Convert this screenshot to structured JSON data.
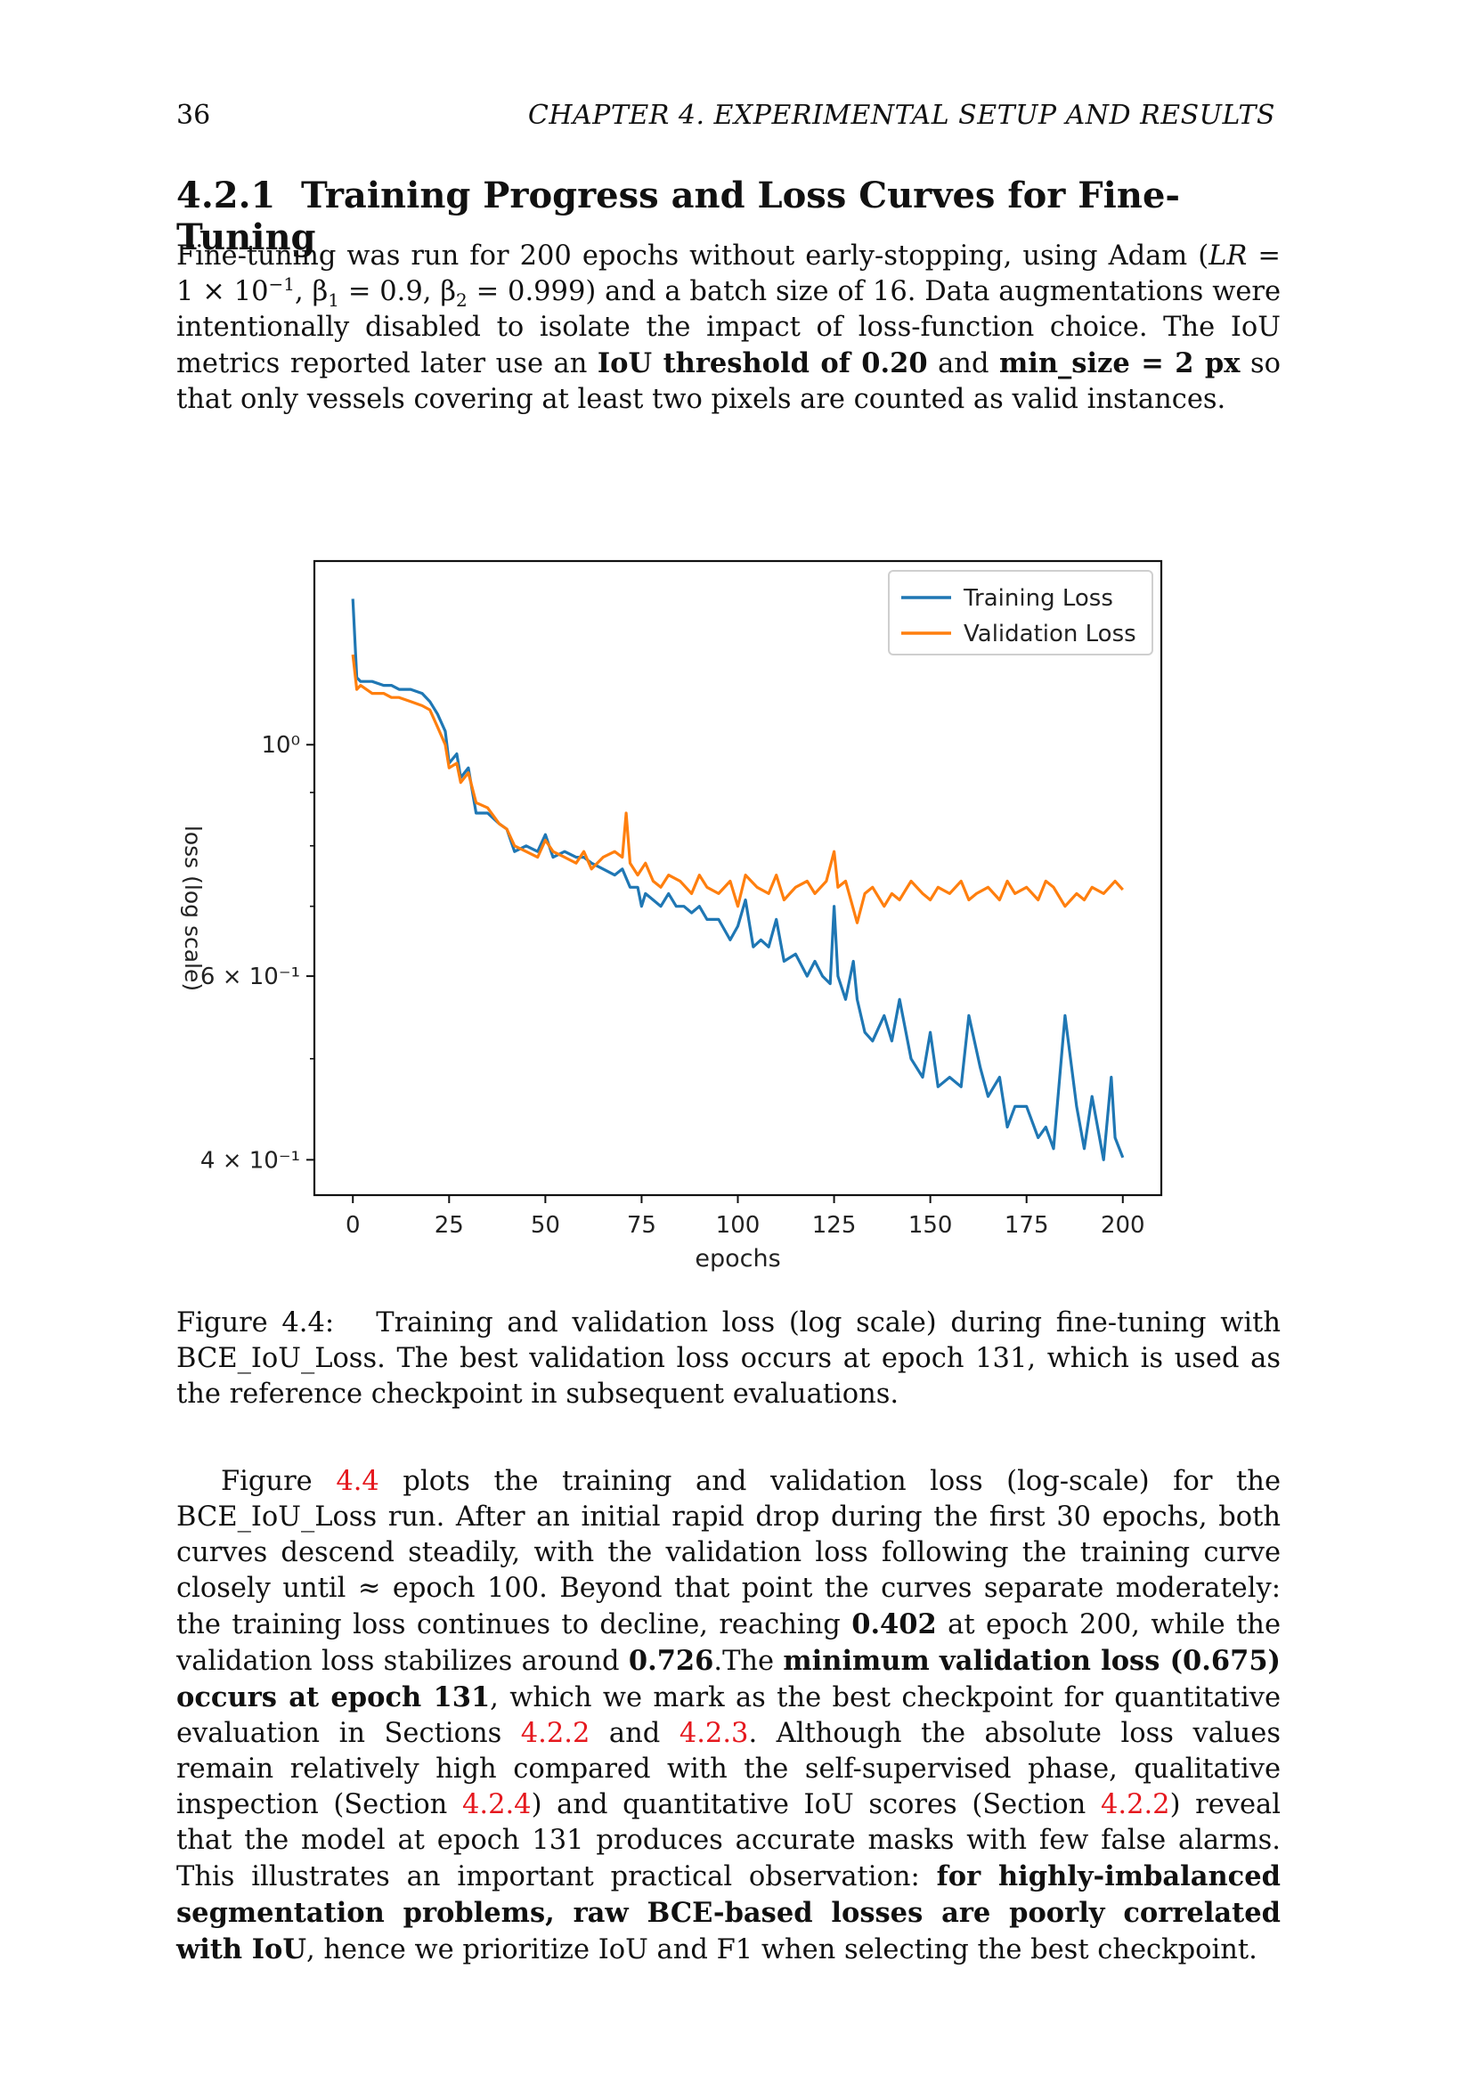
{
  "header": {
    "page_number": "36",
    "running_head": "CHAPTER 4.  EXPERIMENTAL SETUP AND RESULTS"
  },
  "section": {
    "number": "4.2.1",
    "title": "Training Progress and Loss Curves for Fine-Tuning"
  },
  "para1": {
    "t1": "Fine-tuning was run for 200 epochs without early-stopping, using Adam (",
    "lr_var": "LR",
    "t2": " = 1 × 10",
    "lr_exp": "−1",
    "t3": ", β",
    "b1_sub": "1",
    "t4": " = 0.9,  β",
    "b2_sub": "2",
    "t5": " = 0.999) and a batch size of 16. Data augmentations were intentionally disabled to isolate the impact of loss-function choice.  The IoU metrics reported later use an ",
    "b_thr": "IoU threshold of 0.20",
    "t6": " and ",
    "b_min": "min_size = 2 px",
    "t7": " so that only vessels covering at least two pixels are counted as valid instances."
  },
  "figure": {
    "caption_label": "Figure 4.4:",
    "caption_text": "Training and validation loss (log scale) during fine-tuning with BCE_IoU_Loss.  The best validation loss occurs at epoch 131, which is used as the reference checkpoint in subsequent evaluations."
  },
  "para2": {
    "t1": "Figure ",
    "ref1": "4.4",
    "t2": " plots the training and validation loss (log-scale) for the BCE_IoU_Loss run.  After an initial rapid drop during the first 30 epochs, both curves descend steadily, with the validation loss following the training curve closely until ≈ epoch 100.  Beyond that point the curves separate moderately: the training loss continues to decline, reaching ",
    "b1": "0.402",
    "t3": " at epoch 200, while the validation loss stabilizes around ",
    "b2": "0.726",
    "t4": ".The ",
    "b3": "minimum validation loss (0.675) occurs at epoch 131",
    "t5": ", which we mark as the best checkpoint for quantitative evaluation in Sections ",
    "ref2": "4.2.2",
    "t6": " and ",
    "ref3": "4.2.3",
    "t7": ".  Although the absolute loss values remain relatively high compared with the self-supervised phase, qualitative inspection (Section ",
    "ref4": "4.2.4",
    "t8": ") and quantitative IoU scores (Section ",
    "ref5": "4.2.2",
    "t9": ") reveal that the model at epoch 131 produces accurate masks with few false alarms.  This illustrates an important practical observation: ",
    "b4": "for highly-imbalanced segmentation problems, raw BCE-based losses are poorly correlated with IoU",
    "t10": ", hence we prioritize IoU and F1 when selecting the best checkpoint."
  },
  "chart_data": {
    "type": "line",
    "xlabel": "epochs",
    "ylabel": "loss (log scale)",
    "yscale": "log",
    "xlim": [
      -10,
      210
    ],
    "ylim": [
      0.37,
      1.5
    ],
    "xticks": [
      0,
      25,
      50,
      75,
      100,
      125,
      150,
      175,
      200
    ],
    "yticks_major": [
      {
        "value": 1.0,
        "label": "10⁰"
      },
      {
        "value": 0.6,
        "label": "6 × 10⁻¹"
      },
      {
        "value": 0.4,
        "label": "4 × 10⁻¹"
      }
    ],
    "yticks_minor": [
      0.9,
      0.8,
      0.7,
      0.5
    ],
    "legend_position": "top-right",
    "colors": {
      "training": "#1f77b4",
      "validation": "#ff7f0e"
    },
    "series": [
      {
        "name": "Training Loss",
        "x": [
          0,
          1,
          2,
          5,
          8,
          10,
          12,
          15,
          18,
          20,
          22,
          24,
          25,
          27,
          28,
          30,
          32,
          35,
          38,
          40,
          42,
          45,
          48,
          50,
          52,
          55,
          58,
          60,
          62,
          65,
          68,
          70,
          72,
          74,
          75,
          76,
          78,
          80,
          82,
          84,
          86,
          88,
          90,
          92,
          95,
          98,
          100,
          102,
          104,
          106,
          108,
          110,
          112,
          115,
          118,
          120,
          122,
          124,
          125,
          126,
          128,
          130,
          131,
          133,
          135,
          138,
          140,
          142,
          145,
          148,
          150,
          152,
          155,
          158,
          160,
          163,
          165,
          168,
          170,
          172,
          175,
          178,
          180,
          182,
          185,
          188,
          190,
          192,
          195,
          197,
          198,
          200
        ],
        "y": [
          1.38,
          1.16,
          1.15,
          1.15,
          1.14,
          1.14,
          1.13,
          1.13,
          1.12,
          1.1,
          1.07,
          1.03,
          0.96,
          0.98,
          0.93,
          0.95,
          0.86,
          0.86,
          0.84,
          0.83,
          0.79,
          0.8,
          0.79,
          0.82,
          0.78,
          0.79,
          0.78,
          0.78,
          0.77,
          0.76,
          0.75,
          0.76,
          0.73,
          0.73,
          0.7,
          0.72,
          0.71,
          0.7,
          0.72,
          0.7,
          0.7,
          0.69,
          0.7,
          0.68,
          0.68,
          0.65,
          0.67,
          0.71,
          0.64,
          0.65,
          0.64,
          0.68,
          0.62,
          0.63,
          0.6,
          0.62,
          0.6,
          0.59,
          0.7,
          0.6,
          0.57,
          0.62,
          0.57,
          0.53,
          0.52,
          0.55,
          0.52,
          0.57,
          0.5,
          0.48,
          0.53,
          0.47,
          0.48,
          0.47,
          0.55,
          0.49,
          0.46,
          0.48,
          0.43,
          0.45,
          0.45,
          0.42,
          0.43,
          0.41,
          0.55,
          0.45,
          0.41,
          0.46,
          0.4,
          0.48,
          0.42,
          0.402
        ]
      },
      {
        "name": "Validation Loss",
        "x": [
          0,
          1,
          2,
          5,
          8,
          10,
          12,
          15,
          18,
          20,
          22,
          24,
          25,
          27,
          28,
          30,
          32,
          35,
          38,
          40,
          42,
          45,
          48,
          50,
          52,
          55,
          58,
          60,
          62,
          65,
          68,
          70,
          71,
          72,
          74,
          76,
          78,
          80,
          82,
          85,
          88,
          90,
          92,
          95,
          98,
          100,
          102,
          105,
          108,
          110,
          112,
          115,
          118,
          120,
          123,
          125,
          126,
          128,
          131,
          133,
          135,
          138,
          140,
          142,
          145,
          148,
          150,
          152,
          155,
          158,
          160,
          162,
          165,
          168,
          170,
          172,
          175,
          178,
          180,
          182,
          185,
          188,
          190,
          192,
          195,
          198,
          200
        ],
        "y": [
          1.22,
          1.13,
          1.14,
          1.12,
          1.12,
          1.11,
          1.11,
          1.1,
          1.09,
          1.08,
          1.04,
          1.0,
          0.95,
          0.96,
          0.92,
          0.94,
          0.88,
          0.87,
          0.84,
          0.83,
          0.8,
          0.79,
          0.78,
          0.81,
          0.79,
          0.78,
          0.77,
          0.79,
          0.76,
          0.78,
          0.79,
          0.78,
          0.86,
          0.77,
          0.75,
          0.77,
          0.74,
          0.73,
          0.75,
          0.74,
          0.72,
          0.75,
          0.73,
          0.72,
          0.74,
          0.7,
          0.75,
          0.73,
          0.72,
          0.75,
          0.71,
          0.73,
          0.74,
          0.72,
          0.74,
          0.79,
          0.73,
          0.74,
          0.675,
          0.72,
          0.73,
          0.7,
          0.72,
          0.71,
          0.74,
          0.72,
          0.71,
          0.73,
          0.72,
          0.74,
          0.71,
          0.72,
          0.73,
          0.71,
          0.74,
          0.72,
          0.73,
          0.71,
          0.74,
          0.73,
          0.7,
          0.72,
          0.71,
          0.73,
          0.72,
          0.74,
          0.726
        ]
      }
    ]
  }
}
